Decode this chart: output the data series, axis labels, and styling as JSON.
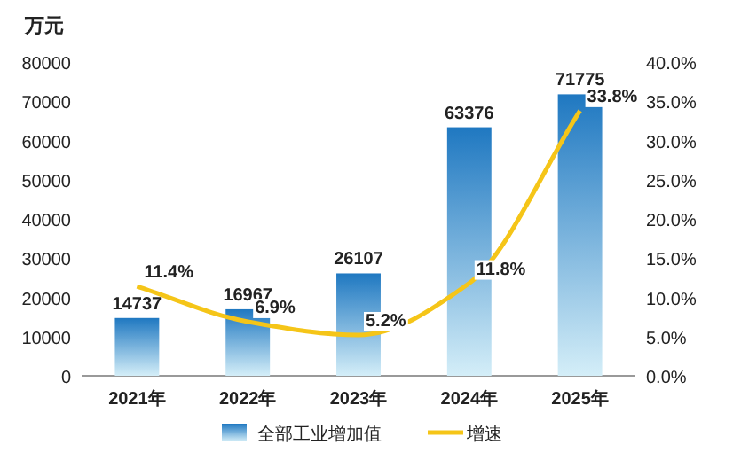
{
  "chart_data": {
    "type": "bar",
    "ylabel": "万元",
    "categories": [
      "2021年",
      "2022年",
      "2023年",
      "2024年",
      "2025年"
    ],
    "series": [
      {
        "name": "全部工业增加值",
        "color": "#1f78c1",
        "values": [
          14737,
          16967,
          26107,
          63376,
          71775
        ]
      },
      {
        "name": "增速",
        "type": "line",
        "axis": "y2",
        "color": "#f5c518",
        "values": [
          11.4,
          6.9,
          5.2,
          11.8,
          33.8
        ],
        "value_labels": [
          "11.4%",
          "6.9%",
          "5.2%",
          "11.8%",
          "33.8%"
        ]
      }
    ],
    "data_labels": true,
    "ylim": [
      0,
      80000
    ],
    "yticks": [
      0,
      10000,
      20000,
      30000,
      40000,
      50000,
      60000,
      70000,
      80000
    ],
    "y2lim": [
      0,
      40
    ],
    "y2ticks": [
      {
        "value": 0,
        "label": "0.0%"
      },
      {
        "value": 5,
        "label": "5.0%"
      },
      {
        "value": 10,
        "label": "10.0%"
      },
      {
        "value": 15,
        "label": "15.0%"
      },
      {
        "value": 20,
        "label": "20.0%"
      },
      {
        "value": 25,
        "label": "25.0%"
      },
      {
        "value": 30,
        "label": "30.0%"
      },
      {
        "value": 35,
        "label": "35.0%"
      },
      {
        "value": 40,
        "label": "40.0%"
      }
    ],
    "legend": "bottom",
    "grid": false,
    "marker": "none",
    "line_style": "solid"
  }
}
